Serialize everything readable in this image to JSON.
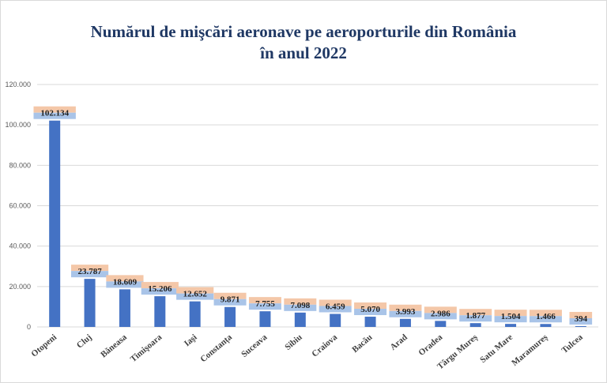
{
  "chart_data": {
    "type": "bar",
    "title_line1": "Numărul de mişcări aeronave pe aeroporturile din România",
    "title_line2": "în anul 2022",
    "xlabel": "",
    "ylabel": "",
    "ylim": [
      0,
      120000
    ],
    "yticks": [
      0,
      20000,
      40000,
      60000,
      80000,
      100000,
      120000
    ],
    "ytick_labels": [
      "0",
      "20.000",
      "40.000",
      "60.000",
      "80.000",
      "100.000",
      "120.000"
    ],
    "grid": true,
    "legend": "none",
    "bar_color": "#4472c4",
    "label_box_top_color": "#f4c7a8",
    "label_box_bottom_color": "#a9c4e8",
    "categories": [
      "Otopeni",
      "Cluj",
      "Băneasa",
      "Timişoara",
      "Iaşi",
      "Constanța",
      "Suceava",
      "Sibiu",
      "Craiova",
      "Bacău",
      "Arad",
      "Oradea",
      "Târgu Mureș",
      "Satu Mare",
      "Maramureș",
      "Tulcea"
    ],
    "values": [
      102134,
      23787,
      18609,
      15206,
      12652,
      9871,
      7755,
      7098,
      6459,
      5070,
      3993,
      2986,
      1877,
      1504,
      1466,
      394
    ],
    "value_labels": [
      "102.134",
      "23.787",
      "18.609",
      "15.206",
      "12.652",
      "9.871",
      "7.755",
      "7.098",
      "6.459",
      "5.070",
      "3.993",
      "2.986",
      "1.877",
      "1.504",
      "1.466",
      "394"
    ]
  }
}
